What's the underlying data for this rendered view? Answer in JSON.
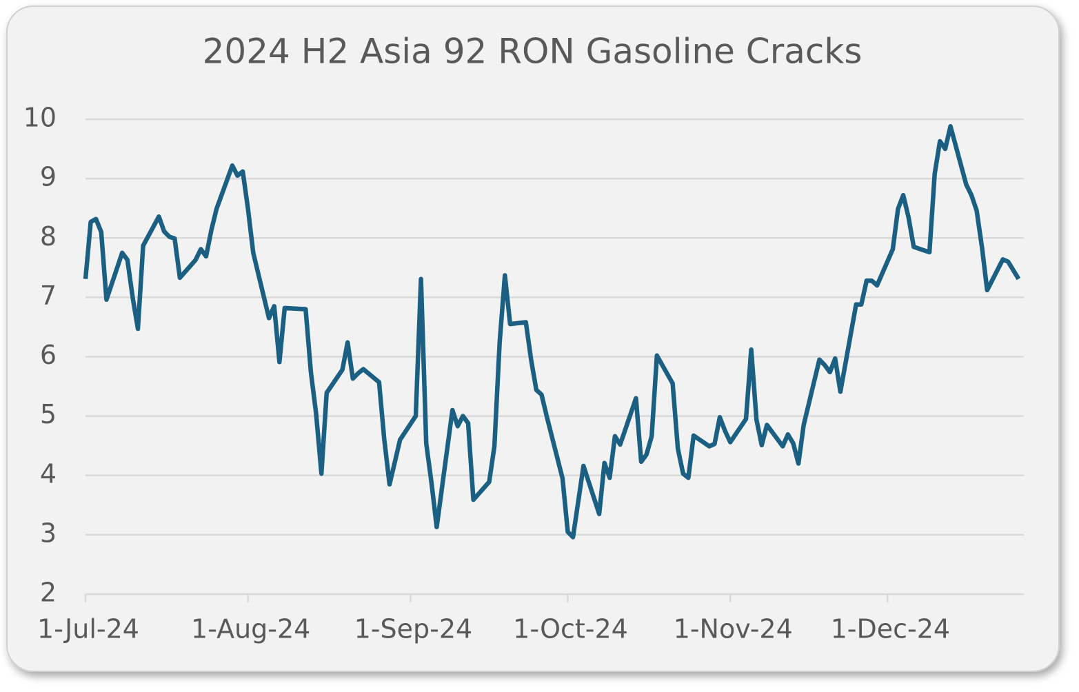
{
  "chart_data": {
    "type": "line",
    "title": "2024 H2 Asia 92 RON Gasoline Cracks",
    "x": [
      "2024-07-01",
      "2024-07-02",
      "2024-07-03",
      "2024-07-04",
      "2024-07-05",
      "2024-07-08",
      "2024-07-09",
      "2024-07-10",
      "2024-07-11",
      "2024-07-12",
      "2024-07-15",
      "2024-07-16",
      "2024-07-17",
      "2024-07-18",
      "2024-07-19",
      "2024-07-22",
      "2024-07-23",
      "2024-07-24",
      "2024-07-25",
      "2024-07-26",
      "2024-07-29",
      "2024-07-30",
      "2024-07-31",
      "2024-08-01",
      "2024-08-02",
      "2024-08-05",
      "2024-08-06",
      "2024-08-07",
      "2024-08-08",
      "2024-08-12",
      "2024-08-13",
      "2024-08-14",
      "2024-08-15",
      "2024-08-16",
      "2024-08-19",
      "2024-08-20",
      "2024-08-21",
      "2024-08-22",
      "2024-08-23",
      "2024-08-26",
      "2024-08-27",
      "2024-08-28",
      "2024-08-29",
      "2024-08-30",
      "2024-09-02",
      "2024-09-03",
      "2024-09-04",
      "2024-09-05",
      "2024-09-06",
      "2024-09-09",
      "2024-09-10",
      "2024-09-11",
      "2024-09-12",
      "2024-09-13",
      "2024-09-16",
      "2024-09-17",
      "2024-09-18",
      "2024-09-19",
      "2024-09-20",
      "2024-09-23",
      "2024-09-24",
      "2024-09-25",
      "2024-09-26",
      "2024-09-27",
      "2024-09-30",
      "2024-10-01",
      "2024-10-02",
      "2024-10-03",
      "2024-10-04",
      "2024-10-07",
      "2024-10-08",
      "2024-10-09",
      "2024-10-10",
      "2024-10-11",
      "2024-10-14",
      "2024-10-15",
      "2024-10-16",
      "2024-10-17",
      "2024-10-18",
      "2024-10-21",
      "2024-10-22",
      "2024-10-23",
      "2024-10-24",
      "2024-10-25",
      "2024-10-28",
      "2024-10-29",
      "2024-10-30",
      "2024-10-31",
      "2024-11-01",
      "2024-11-04",
      "2024-11-05",
      "2024-11-06",
      "2024-11-07",
      "2024-11-08",
      "2024-11-11",
      "2024-11-12",
      "2024-11-13",
      "2024-11-14",
      "2024-11-15",
      "2024-11-18",
      "2024-11-19",
      "2024-11-20",
      "2024-11-21",
      "2024-11-22",
      "2024-11-25",
      "2024-11-26",
      "2024-11-27",
      "2024-11-28",
      "2024-11-29",
      "2024-12-02",
      "2024-12-03",
      "2024-12-04",
      "2024-12-05",
      "2024-12-06",
      "2024-12-09",
      "2024-12-10",
      "2024-12-11",
      "2024-12-12",
      "2024-12-13",
      "2024-12-16",
      "2024-12-17",
      "2024-12-18",
      "2024-12-19",
      "2024-12-20",
      "2024-12-23",
      "2024-12-24",
      "2024-12-26"
    ],
    "series": [
      {
        "name": "Asia 92 RON Gasoline Crack",
        "color": "#1b5f82",
        "values": [
          7.31,
          8.27,
          8.32,
          8.1,
          6.96,
          7.75,
          7.63,
          7.0,
          6.47,
          7.87,
          8.36,
          8.11,
          8.02,
          7.99,
          7.33,
          7.63,
          7.81,
          7.69,
          8.13,
          8.49,
          9.22,
          9.05,
          9.12,
          8.49,
          7.75,
          6.65,
          6.85,
          5.91,
          6.82,
          6.8,
          5.74,
          5.04,
          4.03,
          5.39,
          5.78,
          6.24,
          5.63,
          5.72,
          5.79,
          5.57,
          4.6,
          3.85,
          4.22,
          4.6,
          5.0,
          7.31,
          4.54,
          3.88,
          3.13,
          5.1,
          4.83,
          5.0,
          4.88,
          3.59,
          3.89,
          4.49,
          6.24,
          7.37,
          6.55,
          6.58,
          5.95,
          5.44,
          5.36,
          4.99,
          3.95,
          3.05,
          2.96,
          3.56,
          4.16,
          3.35,
          4.21,
          3.96,
          4.66,
          4.52,
          5.3,
          4.23,
          4.35,
          4.66,
          6.02,
          5.55,
          4.45,
          4.03,
          3.96,
          4.67,
          4.49,
          4.53,
          4.98,
          4.75,
          4.56,
          4.95,
          6.12,
          4.94,
          4.51,
          4.85,
          4.49,
          4.69,
          4.54,
          4.2,
          4.85,
          5.95,
          5.86,
          5.74,
          5.97,
          5.41,
          6.88,
          6.88,
          7.28,
          7.28,
          7.2,
          7.81,
          8.49,
          8.72,
          8.35,
          7.85,
          7.76,
          9.08,
          9.63,
          9.5,
          9.88,
          8.9,
          8.72,
          8.46,
          7.85,
          7.12,
          7.64,
          7.6,
          7.31
        ]
      }
    ],
    "xlim": [
      "2024-07-01",
      "2024-12-27"
    ],
    "xticks": [
      {
        "value": "2024-07-01",
        "label": "1-Jul-24"
      },
      {
        "value": "2024-08-01",
        "label": "1-Aug-24"
      },
      {
        "value": "2024-09-01",
        "label": "1-Sep-24"
      },
      {
        "value": "2024-10-01",
        "label": "1-Oct-24"
      },
      {
        "value": "2024-11-01",
        "label": "1-Nov-24"
      },
      {
        "value": "2024-12-01",
        "label": "1-Dec-24"
      }
    ],
    "ylim": [
      2,
      10
    ],
    "yticks": [
      2,
      3,
      4,
      5,
      6,
      7,
      8,
      9,
      10
    ],
    "grid": true
  }
}
